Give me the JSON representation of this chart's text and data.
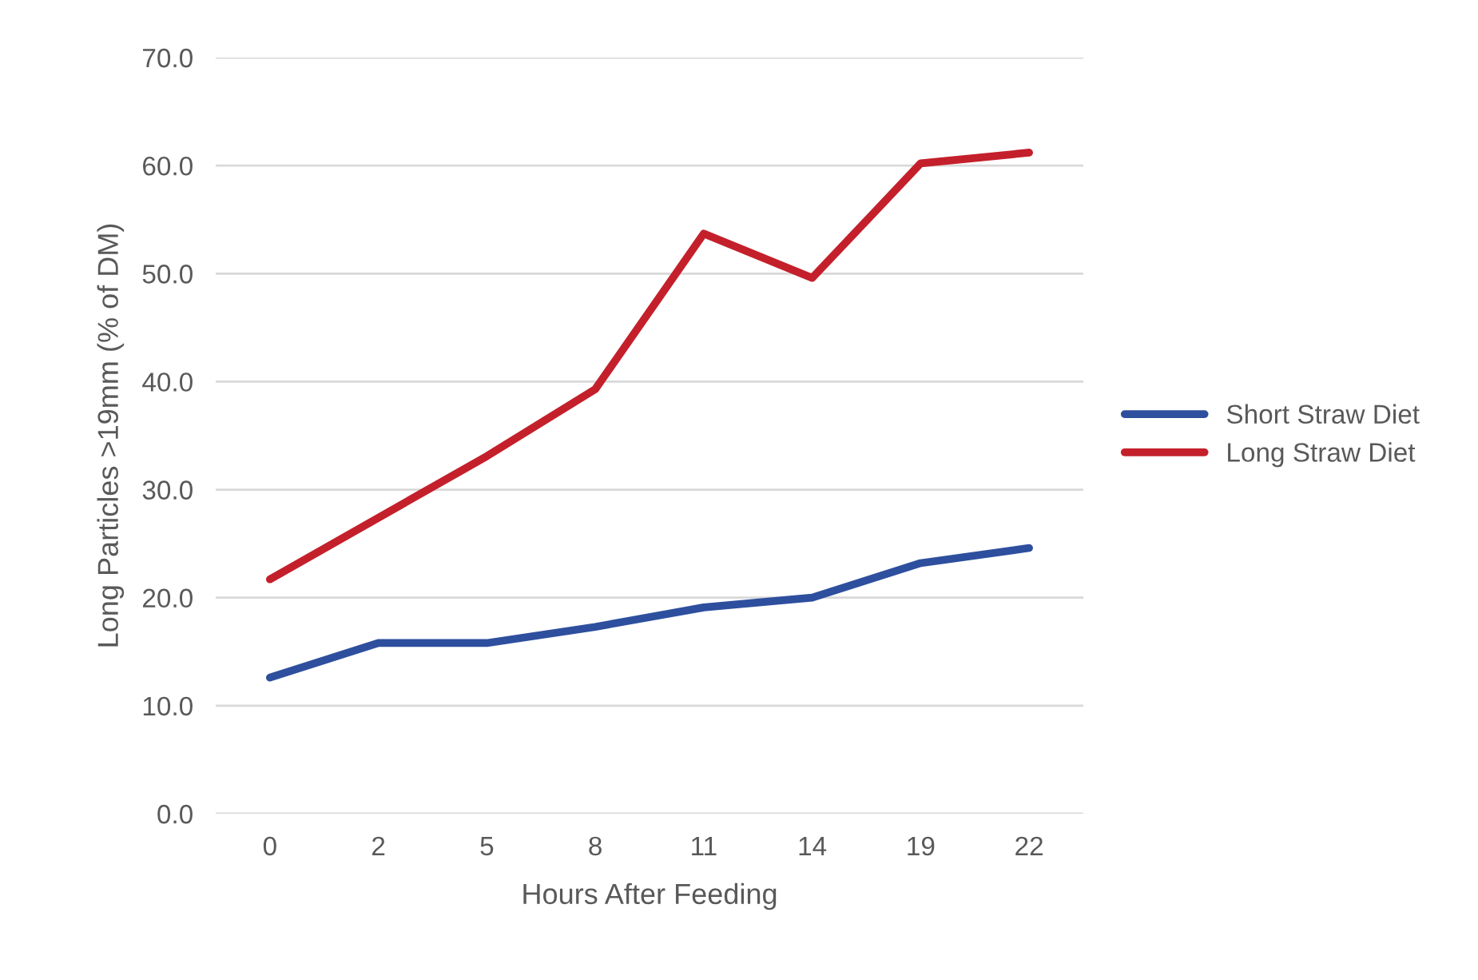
{
  "chart_data": {
    "type": "line",
    "xlabel": "Hours After Feeding",
    "ylabel": "Long Particles >19mm (% of DM)",
    "categories": [
      "0",
      "2",
      "5",
      "8",
      "11",
      "14",
      "19",
      "22"
    ],
    "series": [
      {
        "name": "Short Straw Diet",
        "color": "#2e4f9e",
        "values": [
          12.6,
          15.8,
          15.8,
          17.3,
          19.1,
          20.0,
          23.2,
          24.6
        ]
      },
      {
        "name": "Long Straw Diet",
        "color": "#c4202b",
        "values": [
          21.7,
          27.4,
          33.1,
          39.3,
          53.7,
          49.6,
          60.2,
          61.2
        ]
      }
    ],
    "ylim": [
      0,
      70
    ],
    "yticks": [
      {
        "value": 0,
        "label": "0.0"
      },
      {
        "value": 10,
        "label": "10.0"
      },
      {
        "value": 20,
        "label": "20.0"
      },
      {
        "value": 30,
        "label": "30.0"
      },
      {
        "value": 40,
        "label": "40.0"
      },
      {
        "value": 50,
        "label": "50.0"
      },
      {
        "value": 60,
        "label": "60.0"
      },
      {
        "value": 70,
        "label": "70.0"
      }
    ],
    "grid": "y",
    "legend": "right",
    "marker": "none",
    "line_style": "solid"
  }
}
